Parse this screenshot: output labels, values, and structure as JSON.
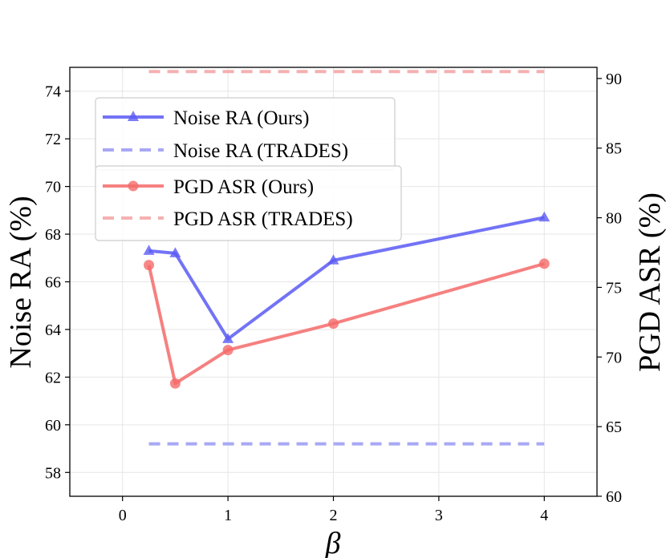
{
  "chart_data": {
    "type": "line",
    "x_label": "β",
    "y_left_label": "Noise RA (%)",
    "y_right_label": "PGD ASR (%)",
    "x_range": [
      -0.5,
      4.5
    ],
    "y_left_range": [
      57,
      75
    ],
    "y_right_range": [
      60,
      90.8
    ],
    "x_ticks": [
      0,
      1,
      2,
      3,
      4
    ],
    "y_left_ticks": [
      58,
      60,
      62,
      64,
      66,
      68,
      70,
      72,
      74
    ],
    "y_right_ticks": [
      60,
      65,
      70,
      75,
      80,
      85,
      90
    ],
    "x_positions": [
      0.25,
      0.5,
      1,
      2,
      4
    ],
    "x_tick_labels": [
      "0",
      "1",
      "2",
      "3",
      "4"
    ],
    "grid": true,
    "series": [
      {
        "name": "Noise RA (Ours)",
        "axis": "left",
        "style": "solid",
        "marker": "triangle",
        "color": "#5b5bf5",
        "x": [
          0.25,
          0.5,
          1,
          2,
          4
        ],
        "values": [
          67.3,
          67.2,
          63.6,
          66.9,
          68.7
        ]
      },
      {
        "name": "Noise RA (TRADES)",
        "axis": "left",
        "style": "dashed",
        "marker": "none",
        "color": "#a8a8f5",
        "x": [
          0.25,
          4
        ],
        "values": [
          59.2,
          59.2
        ]
      },
      {
        "name": "PGD ASR (Ours)",
        "axis": "right",
        "style": "solid",
        "marker": "circle",
        "color": "#f56a6a",
        "x": [
          0.25,
          0.5,
          1,
          2,
          4
        ],
        "values": [
          76.6,
          68.1,
          70.5,
          72.4,
          76.7
        ]
      },
      {
        "name": "PGD ASR (TRADES)",
        "axis": "right",
        "style": "dashed",
        "marker": "none",
        "color": "#f5b0b0",
        "x": [
          0.25,
          4
        ],
        "values": [
          90.5,
          90.5
        ]
      }
    ],
    "legend_position": "upper-left"
  }
}
